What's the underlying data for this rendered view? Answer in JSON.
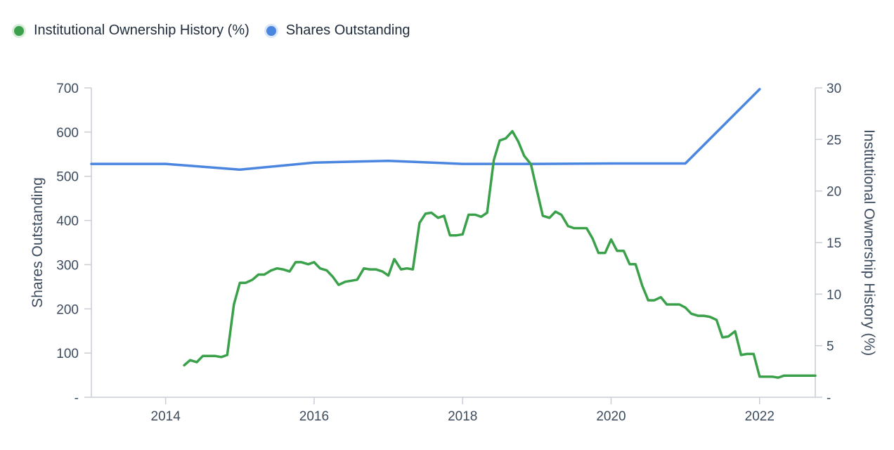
{
  "legend": [
    {
      "label": "Institutional Ownership History (%)",
      "color": "#3aa14a"
    },
    {
      "label": "Shares Outstanding",
      "color": "#4a86e0"
    }
  ],
  "chart_data": {
    "type": "line",
    "xlim": [
      2013.0,
      2022.75
    ],
    "x_ticks": [
      "2014",
      "2016",
      "2018",
      "2020",
      "2022"
    ],
    "left_axis": {
      "label": "Shares Outstanding",
      "ylim": [
        0,
        700
      ],
      "ticks": [
        "-",
        "100",
        "200",
        "300",
        "400",
        "500",
        "600",
        "700"
      ]
    },
    "right_axis": {
      "label": "Institutional Ownership History (%)",
      "ylim": [
        0,
        30
      ],
      "ticks": [
        "-",
        "5",
        "10",
        "15",
        "20",
        "25",
        "30"
      ]
    },
    "grid": false,
    "legend_position": "top-left",
    "series": [
      {
        "name": "Shares Outstanding",
        "axis": "left",
        "color": "#4a86e0",
        "points": [
          [
            2013.0,
            528
          ],
          [
            2014.0,
            528
          ],
          [
            2015.0,
            515
          ],
          [
            2016.0,
            531
          ],
          [
            2017.0,
            535
          ],
          [
            2018.0,
            528
          ],
          [
            2019.0,
            528
          ],
          [
            2020.0,
            529
          ],
          [
            2021.0,
            529
          ],
          [
            2022.0,
            697
          ]
        ]
      },
      {
        "name": "Institutional Ownership History (%)",
        "axis": "right",
        "color": "#3aa14a",
        "points": [
          [
            2014.25,
            3.1
          ],
          [
            2014.33,
            3.6
          ],
          [
            2014.42,
            3.4
          ],
          [
            2014.5,
            4.0
          ],
          [
            2014.58,
            4.0
          ],
          [
            2014.67,
            4.0
          ],
          [
            2014.75,
            3.9
          ],
          [
            2014.83,
            4.1
          ],
          [
            2014.92,
            9.0
          ],
          [
            2015.0,
            11.1
          ],
          [
            2015.08,
            11.1
          ],
          [
            2015.17,
            11.4
          ],
          [
            2015.25,
            11.9
          ],
          [
            2015.33,
            11.9
          ],
          [
            2015.42,
            12.3
          ],
          [
            2015.5,
            12.5
          ],
          [
            2015.58,
            12.4
          ],
          [
            2015.67,
            12.2
          ],
          [
            2015.75,
            13.1
          ],
          [
            2015.83,
            13.1
          ],
          [
            2015.92,
            12.9
          ],
          [
            2016.0,
            13.1
          ],
          [
            2016.08,
            12.5
          ],
          [
            2016.17,
            12.3
          ],
          [
            2016.25,
            11.7
          ],
          [
            2016.33,
            10.9
          ],
          [
            2016.42,
            11.2
          ],
          [
            2016.5,
            11.3
          ],
          [
            2016.58,
            11.4
          ],
          [
            2016.67,
            12.5
          ],
          [
            2016.75,
            12.4
          ],
          [
            2016.83,
            12.4
          ],
          [
            2016.92,
            12.2
          ],
          [
            2017.0,
            11.8
          ],
          [
            2017.08,
            13.4
          ],
          [
            2017.17,
            12.4
          ],
          [
            2017.25,
            12.5
          ],
          [
            2017.33,
            12.4
          ],
          [
            2017.42,
            16.9
          ],
          [
            2017.5,
            17.8
          ],
          [
            2017.58,
            17.9
          ],
          [
            2017.67,
            17.4
          ],
          [
            2017.75,
            17.6
          ],
          [
            2017.83,
            15.7
          ],
          [
            2017.92,
            15.7
          ],
          [
            2018.0,
            15.8
          ],
          [
            2018.08,
            17.7
          ],
          [
            2018.17,
            17.7
          ],
          [
            2018.25,
            17.5
          ],
          [
            2018.33,
            17.9
          ],
          [
            2018.42,
            23.0
          ],
          [
            2018.5,
            24.9
          ],
          [
            2018.58,
            25.1
          ],
          [
            2018.67,
            25.8
          ],
          [
            2018.75,
            24.8
          ],
          [
            2018.83,
            23.4
          ],
          [
            2018.92,
            22.6
          ],
          [
            2019.0,
            20.1
          ],
          [
            2019.08,
            17.6
          ],
          [
            2019.17,
            17.4
          ],
          [
            2019.25,
            18.0
          ],
          [
            2019.33,
            17.7
          ],
          [
            2019.42,
            16.6
          ],
          [
            2019.5,
            16.4
          ],
          [
            2019.58,
            16.4
          ],
          [
            2019.67,
            16.4
          ],
          [
            2019.75,
            15.4
          ],
          [
            2019.83,
            14.0
          ],
          [
            2019.92,
            14.0
          ],
          [
            2020.0,
            15.3
          ],
          [
            2020.08,
            14.2
          ],
          [
            2020.17,
            14.2
          ],
          [
            2020.25,
            12.9
          ],
          [
            2020.33,
            12.9
          ],
          [
            2020.42,
            10.8
          ],
          [
            2020.5,
            9.4
          ],
          [
            2020.58,
            9.4
          ],
          [
            2020.67,
            9.7
          ],
          [
            2020.75,
            9.0
          ],
          [
            2020.83,
            9.0
          ],
          [
            2020.92,
            9.0
          ],
          [
            2021.0,
            8.7
          ],
          [
            2021.08,
            8.1
          ],
          [
            2021.17,
            7.9
          ],
          [
            2021.25,
            7.9
          ],
          [
            2021.33,
            7.8
          ],
          [
            2021.42,
            7.5
          ],
          [
            2021.5,
            5.8
          ],
          [
            2021.58,
            5.9
          ],
          [
            2021.67,
            6.4
          ],
          [
            2021.75,
            4.1
          ],
          [
            2021.83,
            4.2
          ],
          [
            2021.92,
            4.2
          ],
          [
            2022.0,
            2.0
          ],
          [
            2022.08,
            2.0
          ],
          [
            2022.17,
            2.0
          ],
          [
            2022.25,
            1.9
          ],
          [
            2022.33,
            2.1
          ],
          [
            2022.5,
            2.1
          ],
          [
            2022.75,
            2.1
          ]
        ]
      }
    ]
  }
}
